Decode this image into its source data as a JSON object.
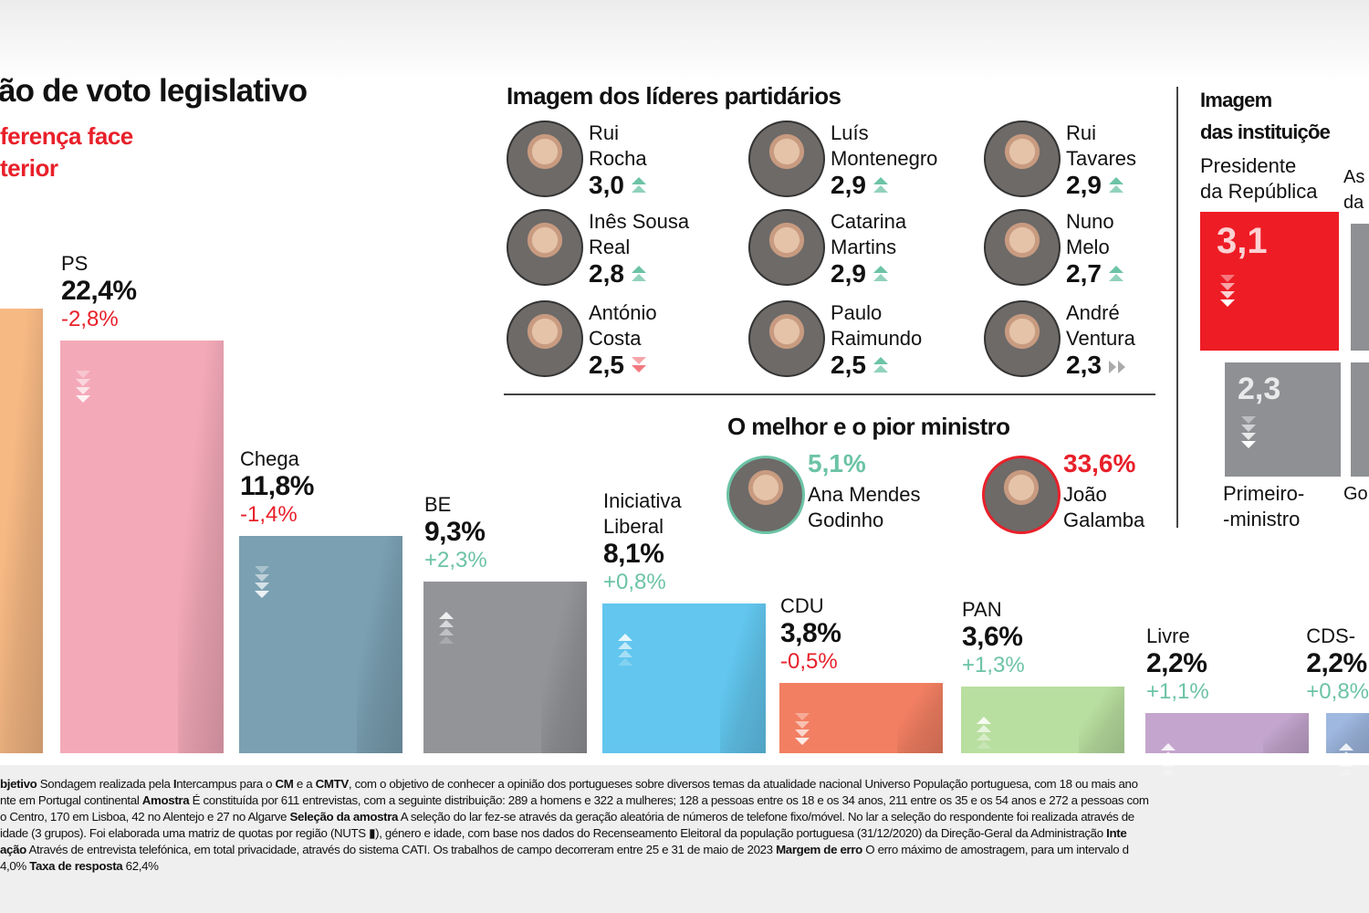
{
  "title": "ão de voto legislativo",
  "subtitle": [
    "ferença face",
    "terior"
  ],
  "colors": {
    "red": "#e8202a",
    "green": "#6cc3a6",
    "gray": "#8f9094"
  },
  "chart_data": {
    "type": "bar",
    "ylim": [
      0,
      26
    ],
    "grid": false,
    "bars": [
      {
        "name": "",
        "value": 24.1,
        "value_label": "",
        "change": "",
        "direction": "",
        "color": "#f7b984"
      },
      {
        "name": "PS",
        "value": 22.4,
        "value_label": "22,4%",
        "change": "-2,8%",
        "direction": "down",
        "color": "#f4a9b8"
      },
      {
        "name": "Chega",
        "value": 11.8,
        "value_label": "11,8%",
        "change": "-1,4%",
        "direction": "down",
        "color": "#7aa0b2"
      },
      {
        "name": "BE",
        "value": 9.3,
        "value_label": "9,3%",
        "change": "+2,3%",
        "direction": "up",
        "color": "#939498"
      },
      {
        "name": "Iniciativa\nLiberal",
        "value": 8.1,
        "value_label": "8,1%",
        "change": "+0,8%",
        "direction": "up",
        "color": "#62c6ee"
      },
      {
        "name": "CDU",
        "value": 3.8,
        "value_label": "3,8%",
        "change": "-0,5%",
        "direction": "down",
        "color": "#f27f62"
      },
      {
        "name": "PAN",
        "value": 3.6,
        "value_label": "3,6%",
        "change": "+1,3%",
        "direction": "up",
        "color": "#b9dfa0"
      },
      {
        "name": "Livre",
        "value": 2.2,
        "value_label": "2,2%",
        "change": "+1,1%",
        "direction": "up",
        "color": "#c3a5cd"
      },
      {
        "name": "CDS-",
        "value": 2.2,
        "value_label": "2,2%",
        "change": "+0,8%",
        "direction": "up",
        "color": "#9fb8e0"
      }
    ]
  },
  "leaders": {
    "title": "Imagem dos líderes partidários",
    "items": [
      {
        "name": [
          "Rui",
          "Rocha"
        ],
        "score": "3,0",
        "trend": "up"
      },
      {
        "name": [
          "Luís",
          "Montenegro"
        ],
        "score": "2,9",
        "trend": "up"
      },
      {
        "name": [
          "Rui",
          "Tavares"
        ],
        "score": "2,9",
        "trend": "up"
      },
      {
        "name": [
          "Inês Sousa",
          "Real"
        ],
        "score": "2,8",
        "trend": "up"
      },
      {
        "name": [
          "Catarina",
          "Martins"
        ],
        "score": "2,9",
        "trend": "up"
      },
      {
        "name": [
          "Nuno",
          "Melo"
        ],
        "score": "2,7",
        "trend": "up"
      },
      {
        "name": [
          "António",
          "Costa"
        ],
        "score": "2,5",
        "trend": "down"
      },
      {
        "name": [
          "Paulo",
          "Raimundo"
        ],
        "score": "2,5",
        "trend": "up"
      },
      {
        "name": [
          "André",
          "Ventura"
        ],
        "score": "2,3",
        "trend": "stable"
      }
    ]
  },
  "ministers": {
    "title": "O melhor e o pior ministro",
    "best": {
      "value": "5,1%",
      "name": [
        "Ana Mendes",
        "Godinho"
      ]
    },
    "worst": {
      "value": "33,6%",
      "name": [
        "João",
        "Galamba"
      ]
    }
  },
  "institutions": {
    "title": [
      "Imagem",
      "das instituiçõe"
    ],
    "items": [
      {
        "label": [
          "Presidente",
          "da República"
        ],
        "value": "3,1",
        "trend": "down",
        "color": "#ee1c25"
      },
      {
        "label": [
          "As",
          "da"
        ],
        "value": "",
        "trend": "",
        "color": "#8f9094"
      },
      {
        "label": [
          "Primeiro-",
          "-ministro"
        ],
        "value": "2,3",
        "trend": "down",
        "color": "#8f9094"
      },
      {
        "label": [
          "Go",
          ""
        ],
        "value": "",
        "trend": "",
        "color": "#8f9094"
      }
    ]
  },
  "footnote": [
    [
      {
        "b": true,
        "t": "bjetivo"
      },
      {
        "t": " Sondagem realizada pela "
      },
      {
        "b": true,
        "t": "I"
      },
      {
        "t": "ntercampus para o "
      },
      {
        "b": true,
        "t": "CM"
      },
      {
        "t": " e a "
      },
      {
        "b": true,
        "t": "CMTV"
      },
      {
        "t": ", com o objetivo de conhecer a opinião dos portugueses sobre diversos temas da atualidade nacional Universo População portuguesa, com 18 ou mais ano"
      }
    ],
    [
      {
        "t": "nte em Portugal continental "
      },
      {
        "b": true,
        "t": "Amostra"
      },
      {
        "t": " É constituída por 611 entrevistas, com a seguinte distribuição: 289 a homens e 322 a mulheres; 128 a pessoas entre os 18 e os 34 anos, 211 entre os 35 e os 54 anos e 272 a pessoas com"
      }
    ],
    [
      {
        "t": "o Centro, 170 em Lisboa, 42 no Alentejo e 27 no Algarve "
      },
      {
        "b": true,
        "t": "Seleção da amostra"
      },
      {
        "t": " A seleção do lar fez-se através da geração aleatória de números de telefone fixo/móvel. No lar a seleção do respondente foi realizada através de"
      }
    ],
    [
      {
        "t": "idade (3 grupos). Foi elaborada uma matriz de quotas por região (NUTS ▮), género e idade, com base nos dados do Recenseamento Eleitoral da população portuguesa (31/12/2020) da Direção-Geral da Administração "
      },
      {
        "b": true,
        "t": "Inte"
      }
    ],
    [
      {
        "b": true,
        "t": "ação"
      },
      {
        "t": " Através de entrevista telefónica, em total privacidade, através do sistema CATI. Os trabalhos de campo decorreram entre 25 e 31 de maio de 2023  "
      },
      {
        "b": true,
        "t": "Margem de erro"
      },
      {
        "t": " O erro máximo de amostragem, para um intervalo d"
      }
    ],
    [
      {
        "t": " 4,0% "
      },
      {
        "b": true,
        "t": "Taxa de resposta"
      },
      {
        "t": " 62,4%"
      }
    ]
  ]
}
